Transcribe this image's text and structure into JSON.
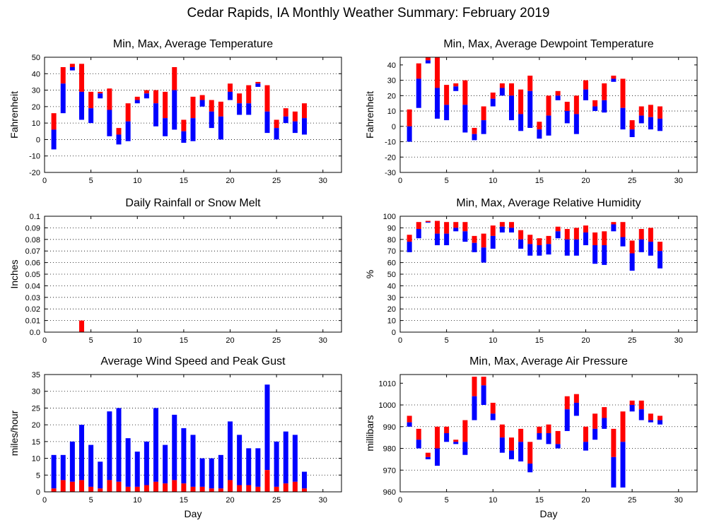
{
  "figure_title": "Cedar Rapids, IA Monthly Weather Summary: February 2019",
  "colors": {
    "upper": "#ff0000",
    "lower": "#0000ff",
    "grid": "#000000"
  },
  "chart_data": [
    {
      "id": "temp",
      "type": "bar",
      "subtype": "range-average",
      "title": "Min, Max, Average Temperature",
      "xlabel": "",
      "ylabel": "Fahrenheit",
      "xlim": [
        0,
        32
      ],
      "xticks": [
        0,
        5,
        10,
        15,
        20,
        25,
        30
      ],
      "ylim": [
        -20,
        50
      ],
      "yticks": [
        -20,
        -10,
        0,
        10,
        20,
        30,
        40,
        50
      ],
      "ytick_labels": [
        "-20",
        "-10",
        "0",
        "10",
        "20",
        "30",
        "40",
        "50"
      ],
      "grid": "horizontal dotted",
      "x": [
        1,
        2,
        3,
        4,
        5,
        6,
        7,
        8,
        9,
        10,
        11,
        12,
        13,
        14,
        15,
        16,
        17,
        18,
        19,
        20,
        21,
        22,
        23,
        24,
        25,
        26,
        27,
        28
      ],
      "min": [
        -6,
        16,
        42,
        12,
        10,
        25,
        2,
        -3,
        -1,
        22,
        25,
        8,
        2,
        6,
        -2,
        -1,
        20,
        7,
        0,
        24,
        15,
        15,
        32,
        4,
        0,
        10,
        4,
        3
      ],
      "max": [
        16,
        44,
        46,
        46,
        29,
        29,
        31,
        7,
        22,
        26,
        30,
        30,
        29,
        44,
        12,
        26,
        27,
        24,
        23,
        34,
        28,
        33,
        35,
        33,
        12,
        19,
        17,
        22
      ],
      "avg": [
        6,
        34,
        44,
        29,
        19,
        28,
        18,
        3,
        11,
        24,
        28,
        22,
        13,
        30,
        5,
        13,
        24,
        17,
        14,
        29,
        22,
        22,
        34,
        17,
        7,
        14,
        11,
        13
      ]
    },
    {
      "id": "dewpoint",
      "type": "bar",
      "subtype": "range-average",
      "title": "Min, Max, Average Dewpoint Temperature",
      "xlabel": "",
      "ylabel": "Fahrenheit",
      "xlim": [
        0,
        32
      ],
      "xticks": [
        0,
        5,
        10,
        15,
        20,
        25,
        30
      ],
      "ylim": [
        -30,
        45
      ],
      "yticks": [
        -30,
        -20,
        -10,
        0,
        10,
        20,
        30,
        40
      ],
      "ytick_labels": [
        "-30",
        "-20",
        "-10",
        "0",
        "10",
        "20",
        "30",
        "40"
      ],
      "grid": "horizontal dotted",
      "x": [
        1,
        2,
        3,
        4,
        5,
        6,
        7,
        8,
        9,
        10,
        11,
        12,
        13,
        14,
        15,
        16,
        17,
        18,
        19,
        20,
        21,
        22,
        23,
        24,
        25,
        26,
        27,
        28
      ],
      "min": [
        -10,
        12,
        41,
        5,
        4,
        23,
        -4,
        -9,
        -5,
        13,
        20,
        4,
        -3,
        -1,
        -8,
        -6,
        17,
        2,
        -5,
        17,
        10,
        9,
        29,
        -2,
        -7,
        2,
        -2,
        -3
      ],
      "max": [
        11,
        41,
        45,
        45,
        27,
        28,
        30,
        -1,
        13,
        22,
        28,
        28,
        24,
        33,
        3,
        20,
        23,
        16,
        20,
        30,
        17,
        28,
        33,
        31,
        4,
        13,
        14,
        13
      ],
      "avg": [
        0,
        31,
        43,
        25,
        14,
        26,
        14,
        -5,
        4,
        18,
        25,
        20,
        8,
        23,
        -2,
        7,
        20,
        10,
        8,
        24,
        13,
        17,
        31,
        12,
        -2,
        7,
        6,
        5
      ]
    },
    {
      "id": "rain",
      "type": "bar",
      "title": "Daily Rainfall or Snow Melt",
      "xlabel": "",
      "ylabel": "Inches",
      "xlim": [
        0,
        32
      ],
      "xticks": [
        0,
        5,
        10,
        15,
        20,
        25,
        30
      ],
      "ylim": [
        0,
        0.1
      ],
      "yticks": [
        0,
        0.01,
        0.02,
        0.03,
        0.04,
        0.05,
        0.06,
        0.07,
        0.08,
        0.09,
        0.1
      ],
      "ytick_labels": [
        "0.0",
        "0.01",
        "0.02",
        "0.03",
        "0.04",
        "0.05",
        "0.06",
        "0.07",
        "0.08",
        "0.09",
        "0.1"
      ],
      "grid": "horizontal dotted",
      "x": [
        4
      ],
      "values": [
        0.01
      ]
    },
    {
      "id": "humidity",
      "type": "bar",
      "subtype": "range-average",
      "title": "Min, Max, Average Relative Humidity",
      "xlabel": "",
      "ylabel": "%",
      "xlim": [
        0,
        32
      ],
      "xticks": [
        0,
        5,
        10,
        15,
        20,
        25,
        30
      ],
      "ylim": [
        0,
        100
      ],
      "yticks": [
        0,
        10,
        20,
        30,
        40,
        50,
        60,
        70,
        80,
        90,
        100
      ],
      "ytick_labels": [
        "0",
        "10",
        "20",
        "30",
        "40",
        "50",
        "60",
        "70",
        "80",
        "90",
        "100"
      ],
      "grid": "horizontal dotted",
      "x": [
        1,
        2,
        3,
        4,
        5,
        6,
        7,
        8,
        9,
        10,
        11,
        12,
        13,
        14,
        15,
        16,
        17,
        18,
        19,
        20,
        21,
        22,
        23,
        24,
        25,
        26,
        27,
        28
      ],
      "min": [
        69,
        81,
        95,
        75,
        75,
        87,
        78,
        69,
        60,
        72,
        86,
        86,
        72,
        66,
        66,
        67,
        81,
        66,
        66,
        75,
        59,
        58,
        87,
        74,
        53,
        69,
        66,
        55
      ],
      "max": [
        84,
        95,
        96,
        96,
        95,
        95,
        95,
        83,
        85,
        92,
        95,
        95,
        88,
        84,
        81,
        83,
        91,
        89,
        90,
        92,
        86,
        87,
        95,
        95,
        79,
        89,
        90,
        78
      ],
      "avg": [
        78,
        89,
        95,
        85,
        85,
        90,
        87,
        77,
        73,
        83,
        91,
        90,
        80,
        76,
        75,
        76,
        87,
        80,
        80,
        86,
        75,
        75,
        93,
        82,
        68,
        80,
        78,
        70
      ]
    },
    {
      "id": "wind",
      "type": "bar",
      "subtype": "stacked",
      "title": "Average Wind Speed and Peak Gust",
      "xlabel": "Day",
      "ylabel": "miles/hour",
      "xlim": [
        0,
        32
      ],
      "xticks": [
        0,
        5,
        10,
        15,
        20,
        25,
        30
      ],
      "ylim": [
        0,
        35
      ],
      "yticks": [
        0,
        5,
        10,
        15,
        20,
        25,
        30,
        35
      ],
      "ytick_labels": [
        "0",
        "5",
        "10",
        "15",
        "20",
        "25",
        "30",
        "35"
      ],
      "grid": "horizontal dotted",
      "x": [
        1,
        2,
        3,
        4,
        5,
        6,
        7,
        8,
        9,
        10,
        11,
        12,
        13,
        14,
        15,
        16,
        17,
        18,
        19,
        20,
        21,
        22,
        23,
        24,
        25,
        26,
        27,
        28
      ],
      "avg_speed": [
        1,
        3.5,
        3,
        3.5,
        1.5,
        1,
        3.5,
        3,
        1.5,
        1.5,
        2,
        3,
        2.5,
        3.5,
        2.5,
        1.5,
        1.5,
        1,
        1,
        3.5,
        2,
        2,
        1.5,
        6.5,
        1.5,
        2.5,
        3,
        1
      ],
      "peak_gust": [
        11,
        11,
        15,
        20,
        14,
        9,
        24,
        25,
        16,
        12,
        15,
        25,
        14,
        23,
        19,
        17,
        10,
        10,
        11,
        21,
        17,
        13,
        13,
        32,
        15,
        18,
        17,
        6
      ]
    },
    {
      "id": "pressure",
      "type": "bar",
      "subtype": "range-average",
      "title": "Min, Max, Average Air Pressure",
      "xlabel": "Day",
      "ylabel": "millibars",
      "xlim": [
        0,
        32
      ],
      "xticks": [
        0,
        5,
        10,
        15,
        20,
        25,
        30
      ],
      "ylim": [
        960,
        1014
      ],
      "yticks": [
        960,
        970,
        980,
        990,
        1000,
        1010
      ],
      "ytick_labels": [
        "960",
        "970",
        "980",
        "990",
        "1000",
        "1010"
      ],
      "grid": "horizontal dotted",
      "x": [
        1,
        2,
        3,
        4,
        5,
        6,
        7,
        8,
        9,
        10,
        11,
        12,
        13,
        14,
        15,
        16,
        17,
        18,
        19,
        20,
        21,
        22,
        23,
        24,
        25,
        26,
        27,
        28
      ],
      "min": [
        990,
        980,
        975,
        972,
        983,
        982,
        977,
        993,
        1000,
        993,
        978,
        975,
        974,
        969,
        984,
        982,
        980,
        988,
        995,
        979,
        984,
        989,
        962,
        962,
        997,
        993,
        992,
        991
      ],
      "max": [
        995,
        989,
        978,
        990,
        990,
        984,
        993,
        1013,
        1013,
        1001,
        991,
        985,
        989,
        983,
        990,
        991,
        988,
        1004,
        1005,
        990,
        996,
        999,
        989,
        997,
        1002,
        1002,
        996,
        995
      ],
      "avg": [
        992,
        984,
        976,
        980,
        987,
        983,
        983,
        1004,
        1009,
        996,
        985,
        979,
        983,
        973,
        987,
        987,
        982,
        998,
        1001,
        983,
        989,
        994,
        976,
        983,
        1000,
        998,
        993,
        993
      ]
    }
  ]
}
